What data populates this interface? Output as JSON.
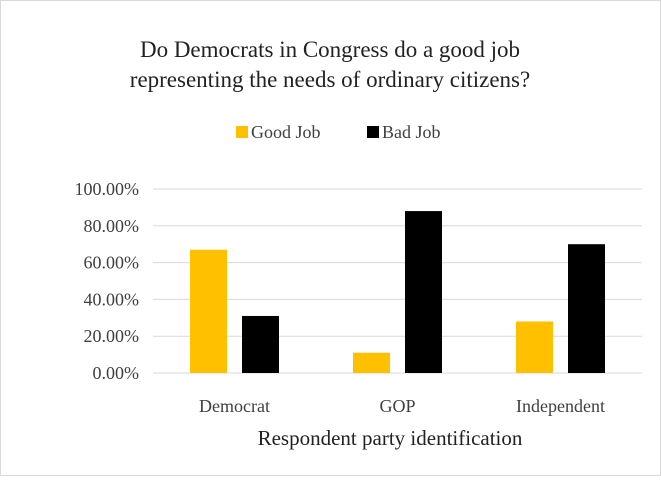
{
  "chart_data": {
    "type": "bar",
    "title_lines": [
      "Do Democrats in Congress do a good job",
      "representing the needs of ordinary citizens?"
    ],
    "xlabel": "Respondent party identification",
    "ylabel": "",
    "categories": [
      "Democrat",
      "GOP",
      "Independent"
    ],
    "series": [
      {
        "name": "Good Job",
        "color": "#FFC000",
        "values": [
          0.67,
          0.11,
          0.28
        ]
      },
      {
        "name": "Bad Job",
        "color": "#000000",
        "values": [
          0.31,
          0.88,
          0.7
        ]
      }
    ],
    "ylim": [
      0,
      1
    ],
    "yticks": [
      0,
      0.2,
      0.4,
      0.6,
      0.8,
      1.0
    ],
    "ytick_labels": [
      "0.00%",
      "20.00%",
      "40.00%",
      "60.00%",
      "80.00%",
      "100.00%"
    ],
    "grid": true,
    "legend_position": "top"
  }
}
